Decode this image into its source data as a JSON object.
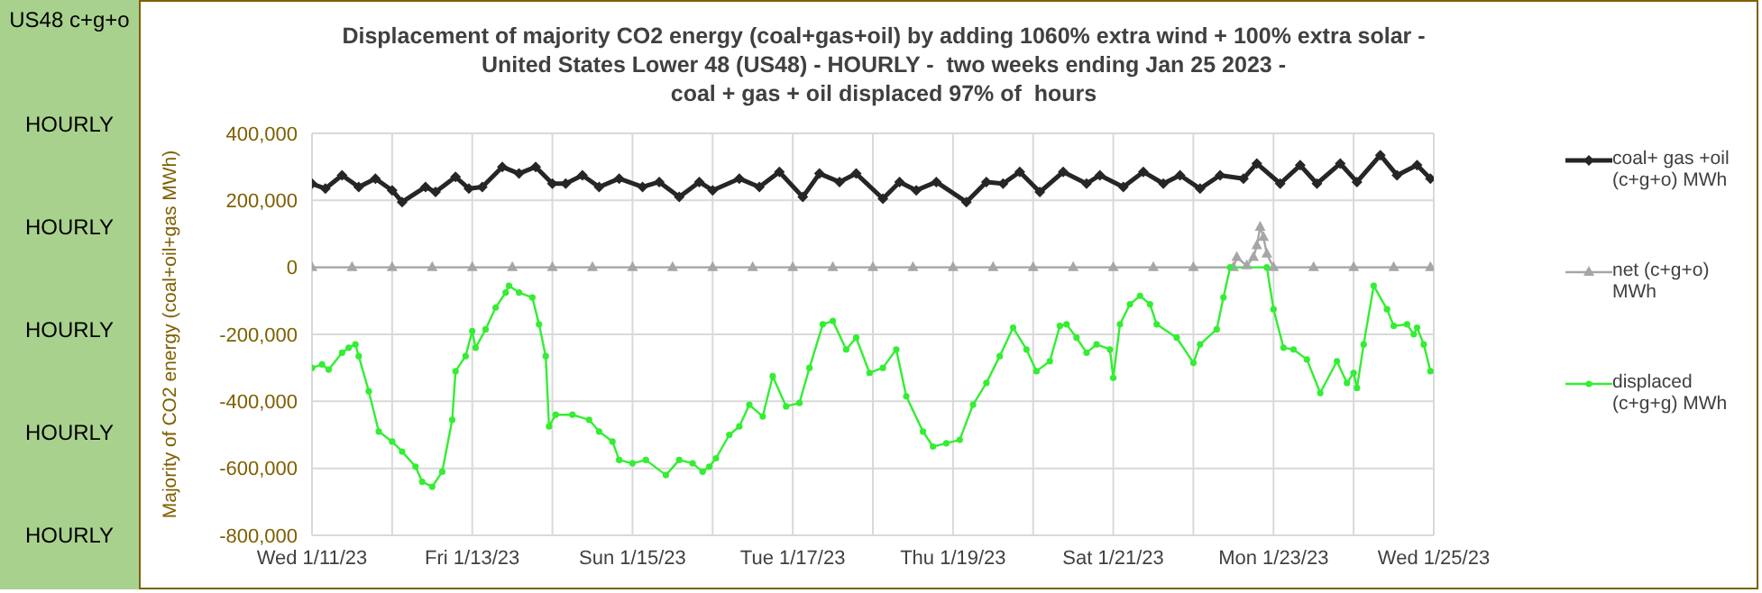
{
  "chart_data": {
    "type": "line",
    "title": "Displacement of majority CO2 energy (coal+gas+oil) by adding 1060% extra wind + 100% extra solar -\nUnited States Lower 48 (US48) - HOURLY -  two weeks ending Jan 25 2023 -\ncoal + gas + oil displaced 97% of  hours",
    "ylabel": "Majority of CO2 energy (coal+oil+gas MWh)",
    "annotations": [
      "US48 c+g+o",
      "HOURLY",
      "HOURLY",
      "HOURLY",
      "HOURLY",
      "HOURLY"
    ],
    "xlim": [
      "2023-01-11",
      "2023-01-25"
    ],
    "xticks": [
      {
        "value": "2023-01-11",
        "label": "Wed 1/11/23"
      },
      {
        "value": "2023-01-12",
        "label": null
      },
      {
        "value": "2023-01-13",
        "label": "Fri 1/13/23"
      },
      {
        "value": "2023-01-14",
        "label": null
      },
      {
        "value": "2023-01-15",
        "label": "Sun 1/15/23"
      },
      {
        "value": "2023-01-16",
        "label": null
      },
      {
        "value": "2023-01-17",
        "label": "Tue 1/17/23"
      },
      {
        "value": "2023-01-18",
        "label": null
      },
      {
        "value": "2023-01-19",
        "label": "Thu 1/19/23"
      },
      {
        "value": "2023-01-20",
        "label": null
      },
      {
        "value": "2023-01-21",
        "label": "Sat 1/21/23"
      },
      {
        "value": "2023-01-22",
        "label": null
      },
      {
        "value": "2023-01-23",
        "label": "Mon 1/23/23"
      },
      {
        "value": "2023-01-24",
        "label": null
      },
      {
        "value": "2023-01-25",
        "label": "Wed 1/25/23"
      }
    ],
    "ylim": [
      -800000,
      400000
    ],
    "yticks": [
      {
        "value": -800000,
        "label": "-800,000"
      },
      {
        "value": -600000,
        "label": "-600,000"
      },
      {
        "value": -400000,
        "label": "-400,000"
      },
      {
        "value": -200000,
        "label": "-200,000"
      },
      {
        "value": 0,
        "label": "0"
      },
      {
        "value": 200000,
        "label": "200,000"
      },
      {
        "value": 400000,
        "label": "400,000"
      }
    ],
    "grid": true,
    "legend": "right",
    "line_style": "solid",
    "series": [
      {
        "name": "coal+ gas +oil (c+g+o) MWh",
        "color": "#262626",
        "marker": "diamond",
        "x": [
          "2023-01-11T00:00",
          "2023-01-11T04:00",
          "2023-01-11T09:00",
          "2023-01-11T14:00",
          "2023-01-11T19:00",
          "2023-01-12T00:00",
          "2023-01-12T03:00",
          "2023-01-12T10:00",
          "2023-01-12T13:00",
          "2023-01-12T19:00",
          "2023-01-12T23:00",
          "2023-01-13T03:00",
          "2023-01-13T09:00",
          "2023-01-13T14:00",
          "2023-01-13T19:00",
          "2023-01-14T00:00",
          "2023-01-14T04:00",
          "2023-01-14T09:00",
          "2023-01-14T14:00",
          "2023-01-14T20:00",
          "2023-01-15T03:00",
          "2023-01-15T08:00",
          "2023-01-15T14:00",
          "2023-01-15T20:00",
          "2023-01-16T00:00",
          "2023-01-16T08:00",
          "2023-01-16T14:00",
          "2023-01-16T20:00",
          "2023-01-17T03:00",
          "2023-01-17T08:00",
          "2023-01-17T14:00",
          "2023-01-17T19:00",
          "2023-01-18T03:00",
          "2023-01-18T08:00",
          "2023-01-18T13:00",
          "2023-01-18T19:00",
          "2023-01-19T04:00",
          "2023-01-19T10:00",
          "2023-01-19T15:00",
          "2023-01-19T20:00",
          "2023-01-20T02:00",
          "2023-01-20T09:00",
          "2023-01-20T16:00",
          "2023-01-20T20:00",
          "2023-01-21T03:00",
          "2023-01-21T09:00",
          "2023-01-21T15:00",
          "2023-01-21T20:00",
          "2023-01-22T02:00",
          "2023-01-22T08:00",
          "2023-01-22T15:00",
          "2023-01-22T19:00",
          "2023-01-23T02:00",
          "2023-01-23T08:00",
          "2023-01-23T13:00",
          "2023-01-23T20:00",
          "2023-01-24T01:00",
          "2023-01-24T08:00",
          "2023-01-24T13:00",
          "2023-01-24T19:00",
          "2023-01-24T23:00"
        ],
        "values": [
          250000,
          235000,
          275000,
          240000,
          265000,
          230000,
          195000,
          240000,
          225000,
          270000,
          235000,
          240000,
          300000,
          280000,
          300000,
          250000,
          250000,
          275000,
          240000,
          265000,
          240000,
          255000,
          210000,
          255000,
          230000,
          265000,
          240000,
          285000,
          210000,
          280000,
          255000,
          280000,
          205000,
          255000,
          230000,
          255000,
          195000,
          255000,
          250000,
          285000,
          225000,
          285000,
          250000,
          275000,
          240000,
          285000,
          250000,
          275000,
          235000,
          275000,
          265000,
          310000,
          250000,
          305000,
          250000,
          310000,
          255000,
          335000,
          275000,
          305000,
          265000
        ]
      },
      {
        "name": "net (c+g+o) MWh",
        "color": "#a6a6a6",
        "marker": "triangle",
        "x": [
          "2023-01-11T00:00",
          "2023-01-11T12:00",
          "2023-01-12T00:00",
          "2023-01-12T12:00",
          "2023-01-13T00:00",
          "2023-01-13T12:00",
          "2023-01-14T00:00",
          "2023-01-14T12:00",
          "2023-01-15T00:00",
          "2023-01-15T12:00",
          "2023-01-16T00:00",
          "2023-01-16T12:00",
          "2023-01-17T00:00",
          "2023-01-17T12:00",
          "2023-01-18T00:00",
          "2023-01-18T12:00",
          "2023-01-19T00:00",
          "2023-01-19T12:00",
          "2023-01-20T00:00",
          "2023-01-20T12:00",
          "2023-01-21T00:00",
          "2023-01-21T12:00",
          "2023-01-22T00:00",
          "2023-01-22T12:00",
          "2023-01-22T13:00",
          "2023-01-22T16:00",
          "2023-01-22T18:00",
          "2023-01-22T19:00",
          "2023-01-22T20:00",
          "2023-01-22T21:00",
          "2023-01-22T22:00",
          "2023-01-23T00:00",
          "2023-01-23T12:00",
          "2023-01-24T00:00",
          "2023-01-24T12:00",
          "2023-01-24T23:00"
        ],
        "values": [
          0,
          0,
          0,
          0,
          0,
          0,
          0,
          0,
          0,
          0,
          0,
          0,
          0,
          0,
          0,
          0,
          0,
          0,
          0,
          0,
          0,
          0,
          0,
          0,
          30000,
          5000,
          30000,
          65000,
          120000,
          90000,
          40000,
          0,
          0,
          0,
          0,
          0
        ]
      },
      {
        "name": "displaced (c+g+g) MWh",
        "color": "#33ee33",
        "marker": "circle",
        "x": [
          "2023-01-11T00:00",
          "2023-01-11T03:00",
          "2023-01-11T05:00",
          "2023-01-11T09:00",
          "2023-01-11T11:00",
          "2023-01-11T13:00",
          "2023-01-11T14:00",
          "2023-01-11T17:00",
          "2023-01-11T20:00",
          "2023-01-12T00:00",
          "2023-01-12T03:00",
          "2023-01-12T07:00",
          "2023-01-12T09:00",
          "2023-01-12T12:00",
          "2023-01-12T15:00",
          "2023-01-12T18:00",
          "2023-01-12T19:00",
          "2023-01-12T22:00",
          "2023-01-13T00:00",
          "2023-01-13T01:00",
          "2023-01-13T04:00",
          "2023-01-13T07:00",
          "2023-01-13T10:00",
          "2023-01-13T11:00",
          "2023-01-13T14:00",
          "2023-01-13T18:00",
          "2023-01-13T20:00",
          "2023-01-13T22:00",
          "2023-01-13T23:00",
          "2023-01-14T01:00",
          "2023-01-14T06:00",
          "2023-01-14T11:00",
          "2023-01-14T14:00",
          "2023-01-14T18:00",
          "2023-01-14T20:00",
          "2023-01-15T00:00",
          "2023-01-15T04:00",
          "2023-01-15T10:00",
          "2023-01-15T14:00",
          "2023-01-15T18:00",
          "2023-01-15T21:00",
          "2023-01-15T23:00",
          "2023-01-16T01:00",
          "2023-01-16T05:00",
          "2023-01-16T08:00",
          "2023-01-16T11:00",
          "2023-01-16T15:00",
          "2023-01-16T18:00",
          "2023-01-16T22:00",
          "2023-01-17T02:00",
          "2023-01-17T05:00",
          "2023-01-17T09:00",
          "2023-01-17T12:00",
          "2023-01-17T16:00",
          "2023-01-17T19:00",
          "2023-01-17T23:00",
          "2023-01-18T03:00",
          "2023-01-18T07:00",
          "2023-01-18T10:00",
          "2023-01-18T15:00",
          "2023-01-18T18:00",
          "2023-01-18T22:00",
          "2023-01-19T02:00",
          "2023-01-19T06:00",
          "2023-01-19T10:00",
          "2023-01-19T14:00",
          "2023-01-19T18:00",
          "2023-01-19T22:00",
          "2023-01-20T01:00",
          "2023-01-20T05:00",
          "2023-01-20T08:00",
          "2023-01-20T10:00",
          "2023-01-20T13:00",
          "2023-01-20T16:00",
          "2023-01-20T19:00",
          "2023-01-20T23:00",
          "2023-01-21T00:00",
          "2023-01-21T02:00",
          "2023-01-21T05:00",
          "2023-01-21T08:00",
          "2023-01-21T11:00",
          "2023-01-21T13:00",
          "2023-01-21T19:00",
          "2023-01-22T00:00",
          "2023-01-22T02:00",
          "2023-01-22T07:00",
          "2023-01-22T09:00",
          "2023-01-22T11:00",
          "2023-01-22T22:00",
          "2023-01-23T00:00",
          "2023-01-23T03:00",
          "2023-01-23T06:00",
          "2023-01-23T10:00",
          "2023-01-23T14:00",
          "2023-01-23T19:00",
          "2023-01-23T22:00",
          "2023-01-24T00:00",
          "2023-01-24T01:00",
          "2023-01-24T03:00",
          "2023-01-24T06:00",
          "2023-01-24T10:00",
          "2023-01-24T12:00",
          "2023-01-24T16:00",
          "2023-01-24T18:00",
          "2023-01-24T19:00",
          "2023-01-24T21:00",
          "2023-01-24T23:00"
        ],
        "values": [
          -300000,
          -290000,
          -305000,
          -255000,
          -240000,
          -230000,
          -265000,
          -370000,
          -490000,
          -520000,
          -550000,
          -595000,
          -640000,
          -655000,
          -610000,
          -455000,
          -310000,
          -265000,
          -190000,
          -240000,
          -185000,
          -120000,
          -75000,
          -55000,
          -75000,
          -90000,
          -170000,
          -265000,
          -475000,
          -440000,
          -440000,
          -455000,
          -490000,
          -520000,
          -575000,
          -585000,
          -575000,
          -620000,
          -575000,
          -585000,
          -610000,
          -595000,
          -570000,
          -500000,
          -475000,
          -410000,
          -445000,
          -325000,
          -415000,
          -405000,
          -300000,
          -170000,
          -160000,
          -245000,
          -210000,
          -315000,
          -300000,
          -245000,
          -385000,
          -490000,
          -535000,
          -525000,
          -515000,
          -410000,
          -345000,
          -265000,
          -180000,
          -245000,
          -310000,
          -280000,
          -175000,
          -170000,
          -210000,
          -255000,
          -230000,
          -245000,
          -330000,
          -170000,
          -110000,
          -85000,
          -110000,
          -170000,
          -210000,
          -285000,
          -230000,
          -185000,
          -90000,
          0,
          0,
          -125000,
          -240000,
          -245000,
          -275000,
          -375000,
          -280000,
          -345000,
          -315000,
          -360000,
          -230000,
          -55000,
          -125000,
          -175000,
          -170000,
          -200000,
          -180000,
          -230000,
          -310000
        ]
      }
    ]
  }
}
